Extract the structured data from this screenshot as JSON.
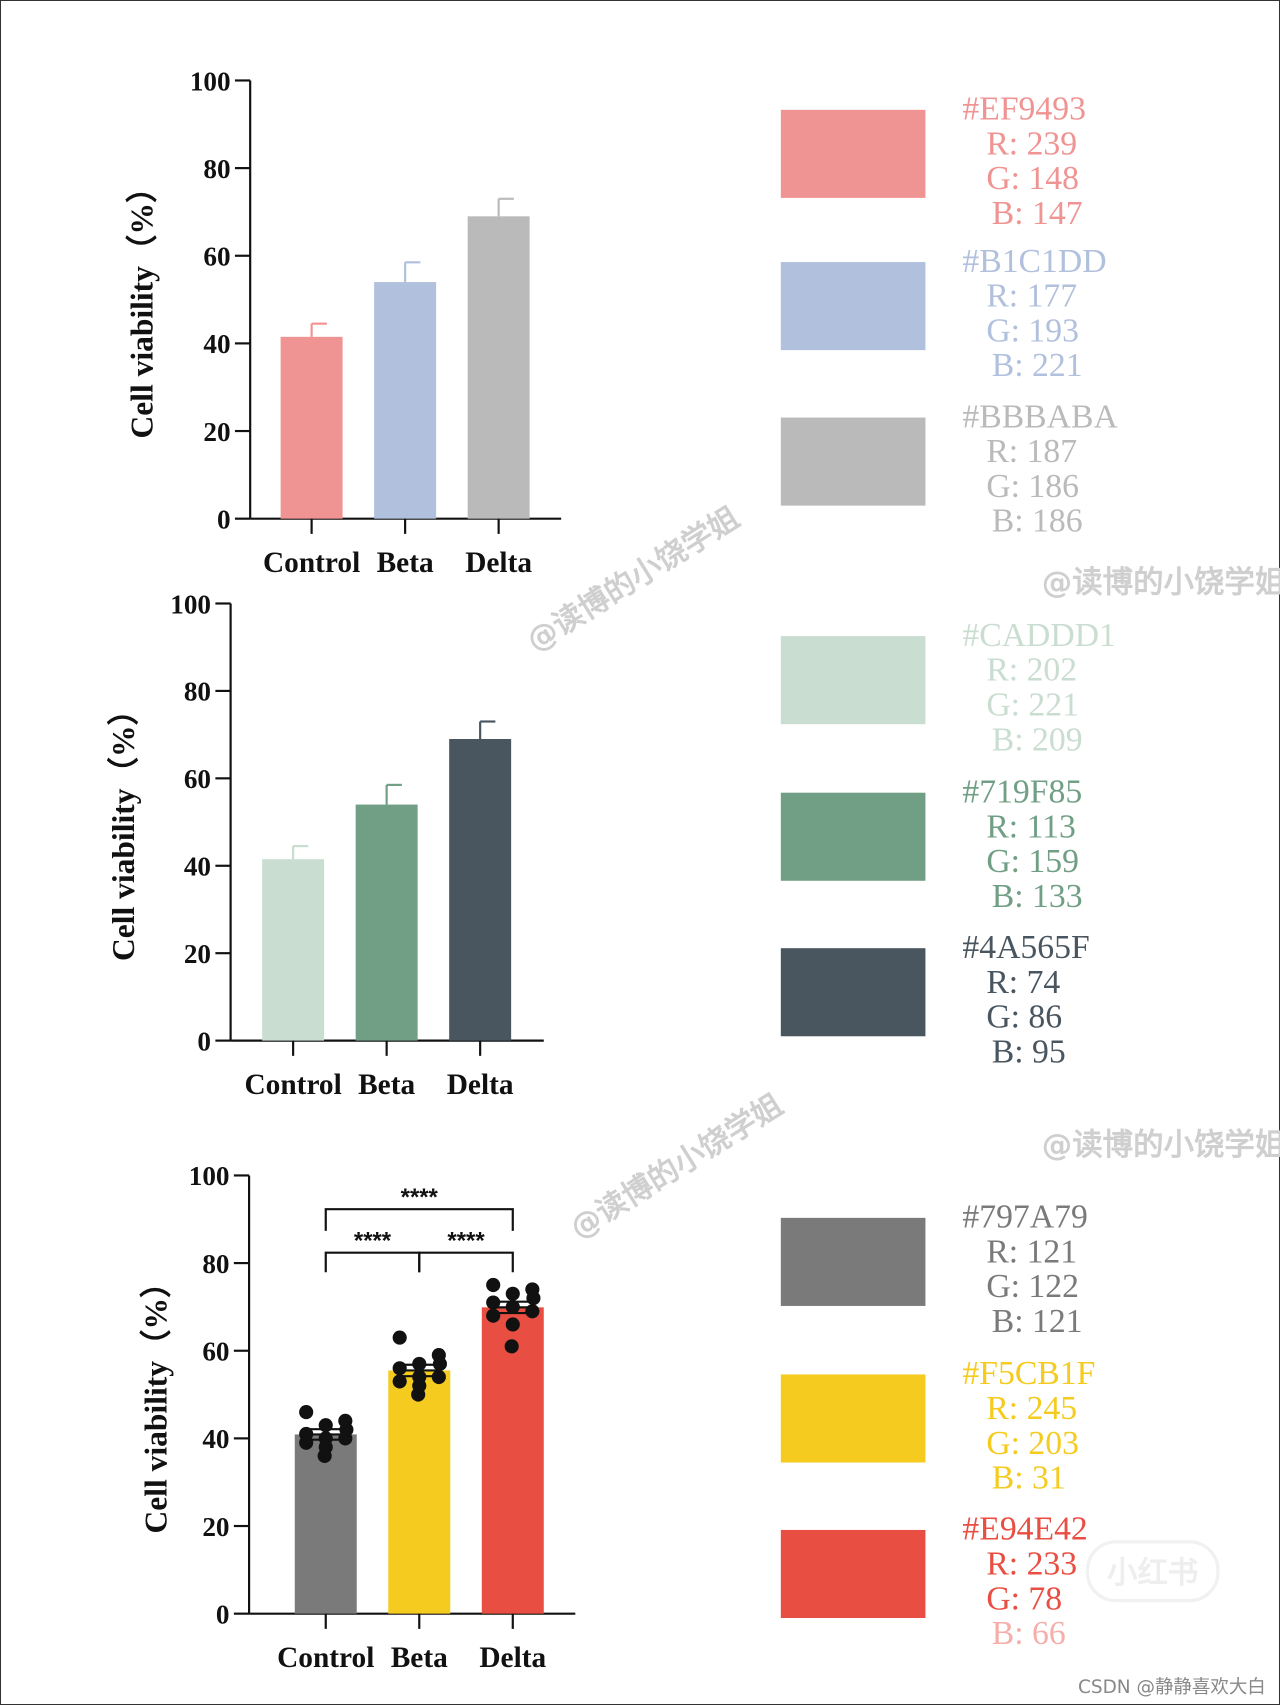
{
  "chart_data": [
    {
      "type": "bar",
      "title": "",
      "xlabel": "",
      "ylabel": "Cell viability（%）",
      "ylim": [
        0,
        100
      ],
      "yticks": [
        "0",
        "20",
        "40",
        "60",
        "80",
        "100"
      ],
      "categories": [
        "Control",
        "Beta",
        "Delta"
      ],
      "values": [
        41.5,
        54,
        69
      ],
      "errors": [
        3,
        4.5,
        4
      ],
      "colors": [
        "#EF9493",
        "#B1C1DD",
        "#BBBABA"
      ]
    },
    {
      "type": "bar",
      "title": "",
      "xlabel": "",
      "ylabel": "Cell viability（%）",
      "ylim": [
        0,
        100
      ],
      "yticks": [
        "0",
        "20",
        "40",
        "60",
        "80",
        "100"
      ],
      "categories": [
        "Control",
        "Beta",
        "Delta"
      ],
      "values": [
        41.5,
        54,
        69
      ],
      "errors": [
        3,
        4.5,
        4
      ],
      "colors": [
        "#CADDD1",
        "#719F85",
        "#4A565F"
      ]
    },
    {
      "type": "bar",
      "title": "",
      "xlabel": "",
      "ylabel": "Cell viability（%）",
      "ylim": [
        0,
        100
      ],
      "yticks": [
        "0",
        "20",
        "40",
        "60",
        "80",
        "100"
      ],
      "categories": [
        "Control",
        "Beta",
        "Delta"
      ],
      "values": [
        40.9,
        55.5,
        69.9
      ],
      "errors": [
        1.2,
        1.3,
        1.3
      ],
      "colors": [
        "#797A79",
        "#F5CB1F",
        "#E94E42"
      ],
      "points": [
        [
          46,
          44,
          43,
          42,
          41,
          40,
          40,
          39,
          38,
          36
        ],
        [
          63,
          59,
          57,
          57,
          56,
          54,
          54,
          53,
          52,
          50
        ],
        [
          75,
          74,
          73,
          72,
          71,
          70,
          69,
          68,
          66,
          61
        ]
      ],
      "significance": [
        {
          "from": "Control",
          "to": "Delta",
          "label": "****"
        },
        {
          "from": "Control",
          "to": "Beta",
          "label": "****"
        },
        {
          "from": "Beta",
          "to": "Delta",
          "label": "****"
        }
      ]
    }
  ],
  "swatches": [
    {
      "hex": "#EF9493",
      "r": "R: 239",
      "g": "G: 148",
      "b": "B: 147"
    },
    {
      "hex": "#B1C1DD",
      "r": "R: 177",
      "g": "G: 193",
      "b": "B: 221"
    },
    {
      "hex": "#BBBABA",
      "r": "R: 187",
      "g": "G: 186",
      "b": "B: 186"
    },
    {
      "hex": "#CADDD1",
      "r": "R: 202",
      "g": "G: 221",
      "b": "B: 209"
    },
    {
      "hex": "#719F85",
      "r": "R: 113",
      "g": "G: 159",
      "b": "B: 133"
    },
    {
      "hex": "#4A565F",
      "r": "R: 74",
      "g": "G: 86",
      "b": "B: 95"
    },
    {
      "hex": "#797A79",
      "r": "R: 121",
      "g": "G: 122",
      "b": "B: 121"
    },
    {
      "hex": "#F5CB1F",
      "r": "R: 245",
      "g": "G: 203",
      "b": "B: 31"
    },
    {
      "hex": "#E94E42",
      "r": "R: 233",
      "g": "G: 78",
      "b": "B: 66"
    }
  ],
  "watermarks": {
    "handle": "@读博的小饶学姐",
    "logo": "小红书",
    "credit": "CSDN @静静喜欢大白"
  }
}
